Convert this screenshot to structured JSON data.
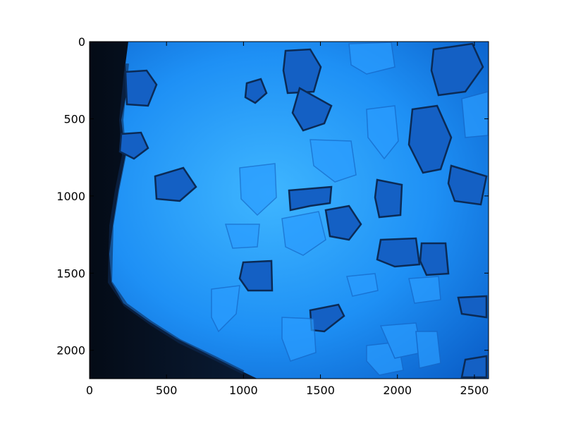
{
  "chart_data": {
    "type": "heatmap",
    "title": "",
    "xlabel": "",
    "ylabel": "",
    "xlim": [
      0,
      2592
    ],
    "ylim": [
      2184,
      0
    ],
    "x_ticks": [
      {
        "value": 0,
        "label": "0"
      },
      {
        "value": 500,
        "label": "500"
      },
      {
        "value": 1000,
        "label": "1000"
      },
      {
        "value": 1500,
        "label": "1500"
      },
      {
        "value": 2000,
        "label": "2000"
      },
      {
        "value": 2500,
        "label": "2500"
      }
    ],
    "y_ticks": [
      {
        "value": 0,
        "label": "0"
      },
      {
        "value": 500,
        "label": "500"
      },
      {
        "value": 1000,
        "label": "1000"
      },
      {
        "value": 1500,
        "label": "1500"
      },
      {
        "value": 2000,
        "label": "2000"
      }
    ],
    "grid": false,
    "colors": {
      "field_light": "#3fb0ff",
      "field_mid": "#1a86f0",
      "field_dark": "#0a5ec8",
      "shadow_edge": "#06101e",
      "grain_outline": "#0b2a55"
    }
  }
}
